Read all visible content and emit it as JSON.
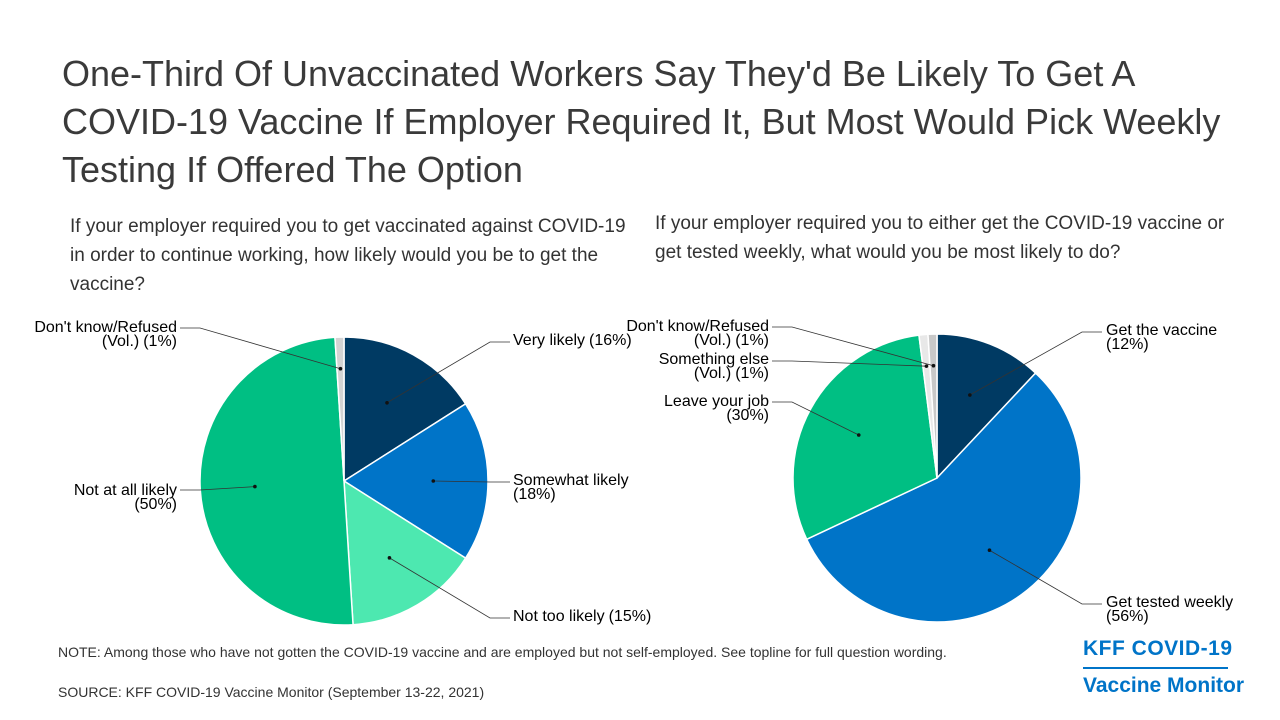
{
  "title": "One-Third Of Unvaccinated Workers Say They'd Be Likely To Get A COVID-19 Vaccine If Employer Required It, But Most Would Pick Weekly Testing If Offered The Option",
  "note": "NOTE: Among those who have not gotten the COVID-19 vaccine and are employed but not self-employed. See topline for full question wording.",
  "source": "SOURCE: KFF COVID-19 Vaccine Monitor (September 13-22, 2021)",
  "logo": {
    "line1": "KFF COVID-19",
    "line2": "Vaccine Monitor"
  },
  "chart_data": [
    {
      "type": "pie",
      "question": "If your employer required you to get vaccinated against COVID-19 in order to continue working, how likely would you be to get the vaccine?",
      "slices": [
        {
          "name": "Very likely",
          "value": 16,
          "display": "(16%)",
          "color": "#003a63"
        },
        {
          "name": "Somewhat likely",
          "value": 18,
          "display": "(18%)",
          "color": "#0074c8"
        },
        {
          "name": "Not too likely",
          "value": 15,
          "display": "(15%)",
          "color": "#4de8b0"
        },
        {
          "name": "Not at all likely",
          "value": 50,
          "display": "(50%)",
          "color": "#00bf83"
        },
        {
          "name": "Don't know/Refused",
          "name_line2": "(Vol.)",
          "value": 1,
          "display": "(1%)",
          "color": "#d3d3d3"
        }
      ]
    },
    {
      "type": "pie",
      "question": "If your employer required you to either get the COVID-19 vaccine or get tested weekly, what would you be most likely to do?",
      "slices": [
        {
          "name": "Get the vaccine",
          "value": 12,
          "display": "(12%)",
          "color": "#003a63"
        },
        {
          "name": "Get tested weekly",
          "value": 56,
          "display": "(56%)",
          "color": "#0074c8"
        },
        {
          "name": "Leave your job",
          "value": 30,
          "display": "(30%)",
          "color": "#00bf83"
        },
        {
          "name": "Something else",
          "name_line2": "(Vol.)",
          "value": 1,
          "display": "(1%)",
          "color": "#e8e8e8"
        },
        {
          "name": "Don't know/Refused",
          "name_line2": "(Vol.)",
          "value": 1,
          "display": "(1%)",
          "color": "#c8c8c8"
        }
      ]
    }
  ]
}
